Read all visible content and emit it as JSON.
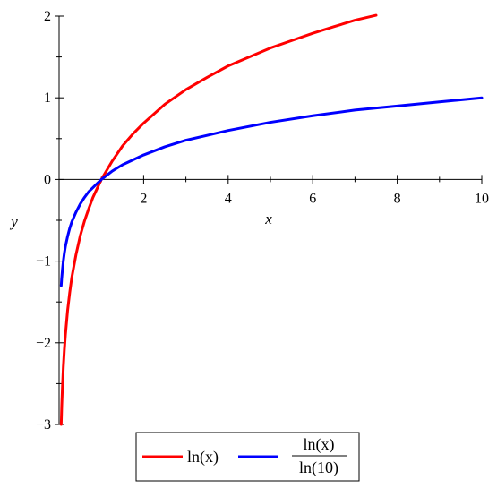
{
  "chart_data": {
    "type": "line",
    "title": "",
    "xlabel": "x",
    "ylabel": "y",
    "xlim": [
      0,
      10
    ],
    "ylim": [
      -3,
      2
    ],
    "x_ticks": [
      2,
      4,
      6,
      8,
      10
    ],
    "x_tick_labels": [
      "2",
      "4",
      "6",
      "8",
      "10"
    ],
    "y_ticks": [
      -3,
      -2,
      -1,
      0,
      1,
      2
    ],
    "y_tick_labels": [
      "−3",
      "−2",
      "−1",
      "0",
      "1",
      "2"
    ],
    "grid": false,
    "legend_position": "bottom",
    "series": [
      {
        "name": "ln(x)",
        "color": "#ff0000",
        "x": [
          0.05,
          0.0625,
          0.08,
          0.1,
          0.125,
          0.15,
          0.2,
          0.25,
          0.3,
          0.4,
          0.5,
          0.6,
          0.7,
          0.8,
          0.9,
          1,
          1.25,
          1.5,
          1.75,
          2,
          2.5,
          3,
          3.5,
          4,
          4.5,
          5,
          5.5,
          6,
          6.5,
          7,
          7.5
        ],
        "y": [
          -3.0,
          -2.77,
          -2.53,
          -2.3,
          -2.08,
          -1.9,
          -1.61,
          -1.39,
          -1.2,
          -0.92,
          -0.69,
          -0.51,
          -0.36,
          -0.22,
          -0.11,
          0.0,
          0.22,
          0.41,
          0.56,
          0.69,
          0.92,
          1.1,
          1.25,
          1.39,
          1.5,
          1.61,
          1.7,
          1.79,
          1.87,
          1.95,
          2.01
        ]
      },
      {
        "name": "ln(x)/ln(10)",
        "color": "#0000ff",
        "x": [
          0.05,
          0.06,
          0.08,
          0.1,
          0.125,
          0.15,
          0.2,
          0.25,
          0.3,
          0.4,
          0.5,
          0.6,
          0.7,
          0.8,
          0.9,
          1,
          1.25,
          1.5,
          2,
          2.5,
          3,
          3.5,
          4,
          5,
          6,
          7,
          8,
          9,
          10
        ],
        "y": [
          -1.3,
          -1.22,
          -1.1,
          -1.0,
          -0.9,
          -0.82,
          -0.7,
          -0.6,
          -0.52,
          -0.4,
          -0.3,
          -0.22,
          -0.15,
          -0.1,
          -0.05,
          0.0,
          0.1,
          0.18,
          0.3,
          0.4,
          0.48,
          0.54,
          0.6,
          0.7,
          0.78,
          0.85,
          0.9,
          0.95,
          1.0
        ]
      }
    ],
    "legend": {
      "items": [
        {
          "text": "ln(x)"
        },
        {
          "numerator": "ln(x)",
          "denominator": "ln(10)"
        }
      ]
    }
  }
}
